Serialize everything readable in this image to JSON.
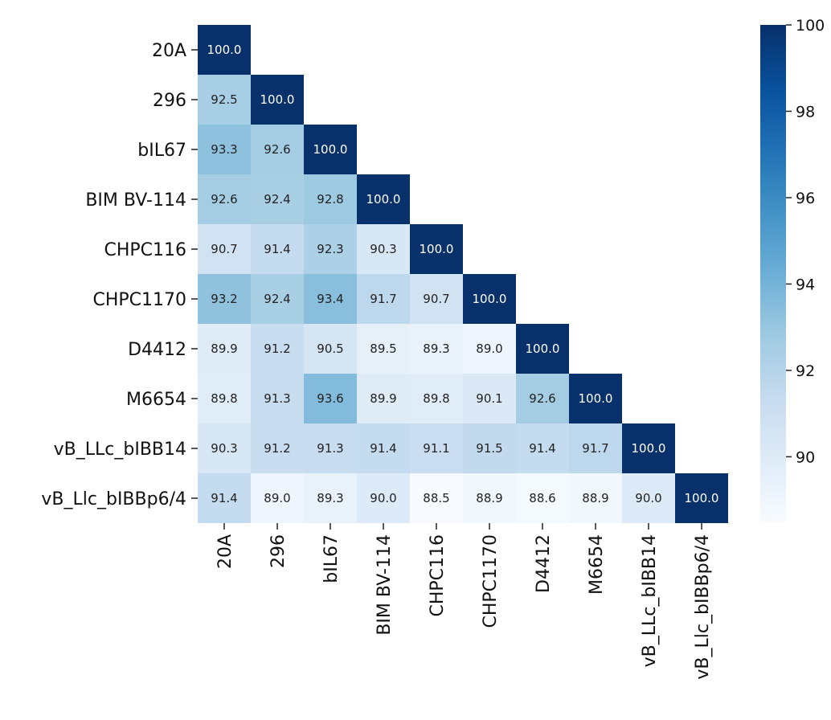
{
  "chart_data": {
    "type": "heatmap",
    "title": "",
    "xlabel": "",
    "ylabel": "",
    "labels": [
      "20A",
      "296",
      "bIL67",
      "BIM BV-114",
      "CHPC116",
      "CHPC1170",
      "D4412",
      "M6654",
      "vB_LLc_bIBB14",
      "vB_Llc_bIBBp6/4"
    ],
    "matrix": [
      [
        100.0
      ],
      [
        92.5,
        100.0
      ],
      [
        93.3,
        92.6,
        100.0
      ],
      [
        92.6,
        92.4,
        92.8,
        100.0
      ],
      [
        90.7,
        91.4,
        92.3,
        90.3,
        100.0
      ],
      [
        93.2,
        92.4,
        93.4,
        91.7,
        90.7,
        100.0
      ],
      [
        89.9,
        91.2,
        90.5,
        89.5,
        89.3,
        89.0,
        100.0
      ],
      [
        89.8,
        91.3,
        93.6,
        89.9,
        89.8,
        90.1,
        92.6,
        100.0
      ],
      [
        90.3,
        91.2,
        91.3,
        91.4,
        91.1,
        91.5,
        91.4,
        91.7,
        100.0
      ],
      [
        91.4,
        89.0,
        89.3,
        90.0,
        88.5,
        88.9,
        88.6,
        88.9,
        90.0,
        100.0
      ]
    ],
    "value_format": "0.0",
    "layout": "lower-triangle",
    "colormap": "Blues",
    "colorbar": {
      "range": [
        88.5,
        100
      ],
      "ticks": [
        90,
        92,
        94,
        96,
        98,
        100
      ]
    },
    "grid": false,
    "legend": "colorbar-right"
  }
}
